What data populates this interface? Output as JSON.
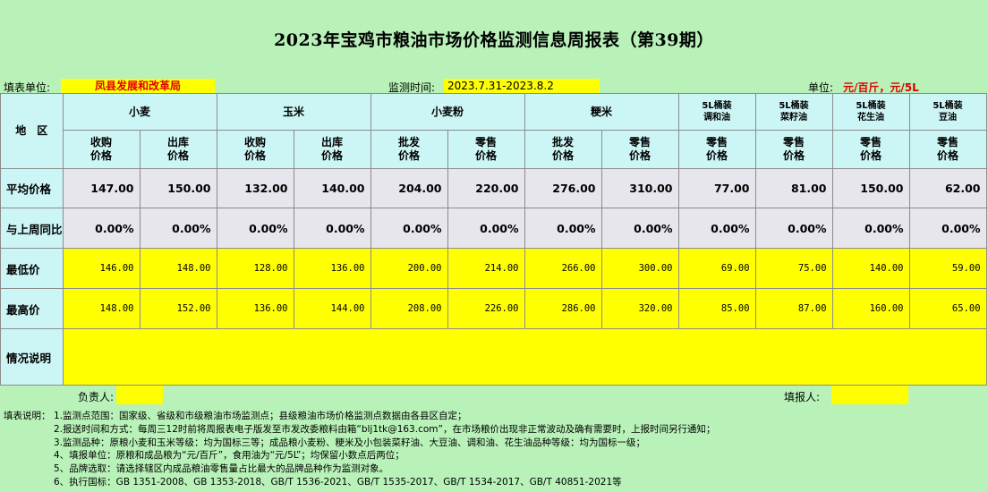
{
  "title": "2023年宝鸡市粮油市场价格监测信息周报表（第39期）",
  "info": {
    "unit_label": "填表单位:",
    "unit_value": "凤县发展和改革局",
    "period_label": "监测时间:",
    "period_value": "2023.7.31-2023.8.2",
    "measure_label": "单位:",
    "measure_value": "元/百斤，元/5L"
  },
  "table": {
    "region_header": "地　区",
    "group_headers": [
      "小麦",
      "玉米",
      "小麦粉",
      "粳米"
    ],
    "oil_headers": [
      "5L桶装\n调和油",
      "5L桶装\n菜籽油",
      "5L桶装\n花生油",
      "5L桶装\n豆油"
    ],
    "sub_headers": [
      "收购\n价格",
      "出库\n价格",
      "收购\n价格",
      "出库\n价格",
      "批发\n价格",
      "零售\n价格",
      "批发\n价格",
      "零售\n价格",
      "零售\n价格",
      "零售\n价格",
      "零售\n价格",
      "零售\n价格"
    ],
    "rows": [
      {
        "label": "平均价格",
        "style": "avg",
        "values": [
          "147.00",
          "150.00",
          "132.00",
          "140.00",
          "204.00",
          "220.00",
          "276.00",
          "310.00",
          "77.00",
          "81.00",
          "150.00",
          "62.00"
        ]
      },
      {
        "label": "与上周同比",
        "style": "avg",
        "values": [
          "0.00%",
          "0.00%",
          "0.00%",
          "0.00%",
          "0.00%",
          "0.00%",
          "0.00%",
          "0.00%",
          "0.00%",
          "0.00%",
          "0.00%",
          "0.00%"
        ]
      },
      {
        "label": "最低价",
        "style": "yel",
        "values": [
          "146.00",
          "148.00",
          "128.00",
          "136.00",
          "200.00",
          "214.00",
          "266.00",
          "300.00",
          "69.00",
          "75.00",
          "140.00",
          "59.00"
        ]
      },
      {
        "label": "最高价",
        "style": "yel",
        "values": [
          "148.00",
          "152.00",
          "136.00",
          "144.00",
          "208.00",
          "226.00",
          "286.00",
          "320.00",
          "85.00",
          "87.00",
          "160.00",
          "65.00"
        ]
      }
    ],
    "remarks_label": "情况说明",
    "remarks_value": ""
  },
  "signature": {
    "responsible_label": "负责人:",
    "reporter_label": "填报人:"
  },
  "notes": {
    "prefix": "填表说明：",
    "lines": [
      "1.监测点范围：国家级、省级和市级粮油市场监测点；县级粮油市场价格监测点数据由各县区自定；",
      "2.报送时间和方式：每周三12时前将周报表电子版发至市发改委粮料由箱“blj1tk@163.com”，在市场粮价出现非正常波动及确有需要时，上报时间另行通知；",
      "3.监测品种：原粮小麦和玉米等级：均为国标三等；成品粮小麦粉、粳米及小包装菜籽油、大豆油、调和油、花生油品种等级：均为国标一级；",
      "4、填报单位：原粮和成品粮为“元/百斤”，食用油为“元/5L”；均保留小数点后两位；",
      "5、品牌选取：请选择辖区内成品粮油零售量占比最大的品牌品种作为监测对象。",
      "6、执行国标：GB 1351-2008、GB 1353-2018、GB/T 1536-2021、GB/T 1535-2017、GB/T 1534-2017、GB/T 40851-2021等"
    ]
  }
}
